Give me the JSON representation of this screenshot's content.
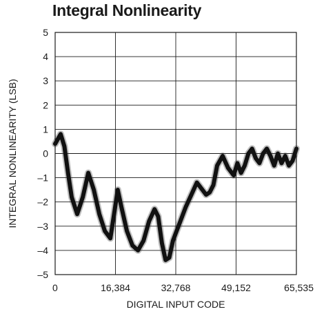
{
  "chart_data": {
    "type": "line",
    "title": "Integral Nonlinearity",
    "xlabel": "DIGITAL INPUT CODE",
    "ylabel": "INTEGRAL NONLINEARITY (LSB)",
    "xlim": [
      0,
      65535
    ],
    "ylim": [
      -5,
      5
    ],
    "x_ticks": [
      0,
      16384,
      32768,
      49152,
      65535
    ],
    "x_tick_labels": [
      "0",
      "16,384",
      "32,768",
      "49,152",
      "65,535"
    ],
    "y_ticks": [
      5,
      4,
      3,
      2,
      1,
      0,
      -1,
      -2,
      -3,
      -4,
      -5
    ],
    "y_tick_labels": [
      "5",
      "4",
      "3",
      "2",
      "1",
      "0",
      "–1",
      "–2",
      "–3",
      "–4",
      "–5"
    ],
    "grid": true,
    "line_color": "#111111",
    "series": [
      {
        "x": [
          0,
          1500,
          2500,
          3500,
          4500,
          6000,
          7500,
          9000,
          10500,
          12000,
          13500,
          15000,
          16000,
          17000,
          18000,
          19500,
          21000,
          22500,
          24000,
          25500,
          27000,
          28000,
          29000,
          30000,
          31000,
          32000,
          33000,
          34000,
          35500,
          37000,
          38500,
          40000,
          41000,
          42000,
          43000,
          44000,
          45500,
          47000,
          48500,
          49500,
          50500,
          51500,
          52500,
          53500,
          54500,
          55500,
          56500,
          57500,
          58500,
          59500,
          60500,
          61500,
          62500,
          63500,
          64500,
          65535
        ],
        "y": [
          0.4,
          0.8,
          0.3,
          -0.8,
          -1.8,
          -2.5,
          -1.8,
          -0.8,
          -1.5,
          -2.5,
          -3.2,
          -3.5,
          -2.5,
          -1.5,
          -2.2,
          -3.2,
          -3.8,
          -4.0,
          -3.6,
          -2.8,
          -2.3,
          -2.6,
          -3.7,
          -4.4,
          -4.3,
          -3.6,
          -3.2,
          -2.8,
          -2.2,
          -1.7,
          -1.2,
          -1.5,
          -1.7,
          -1.6,
          -1.3,
          -0.5,
          -0.1,
          -0.6,
          -0.9,
          -0.4,
          -0.8,
          -0.5,
          0.0,
          0.2,
          -0.2,
          -0.4,
          0.0,
          0.2,
          -0.1,
          -0.5,
          0.0,
          -0.4,
          -0.1,
          -0.5,
          -0.3,
          0.2
        ]
      }
    ]
  }
}
